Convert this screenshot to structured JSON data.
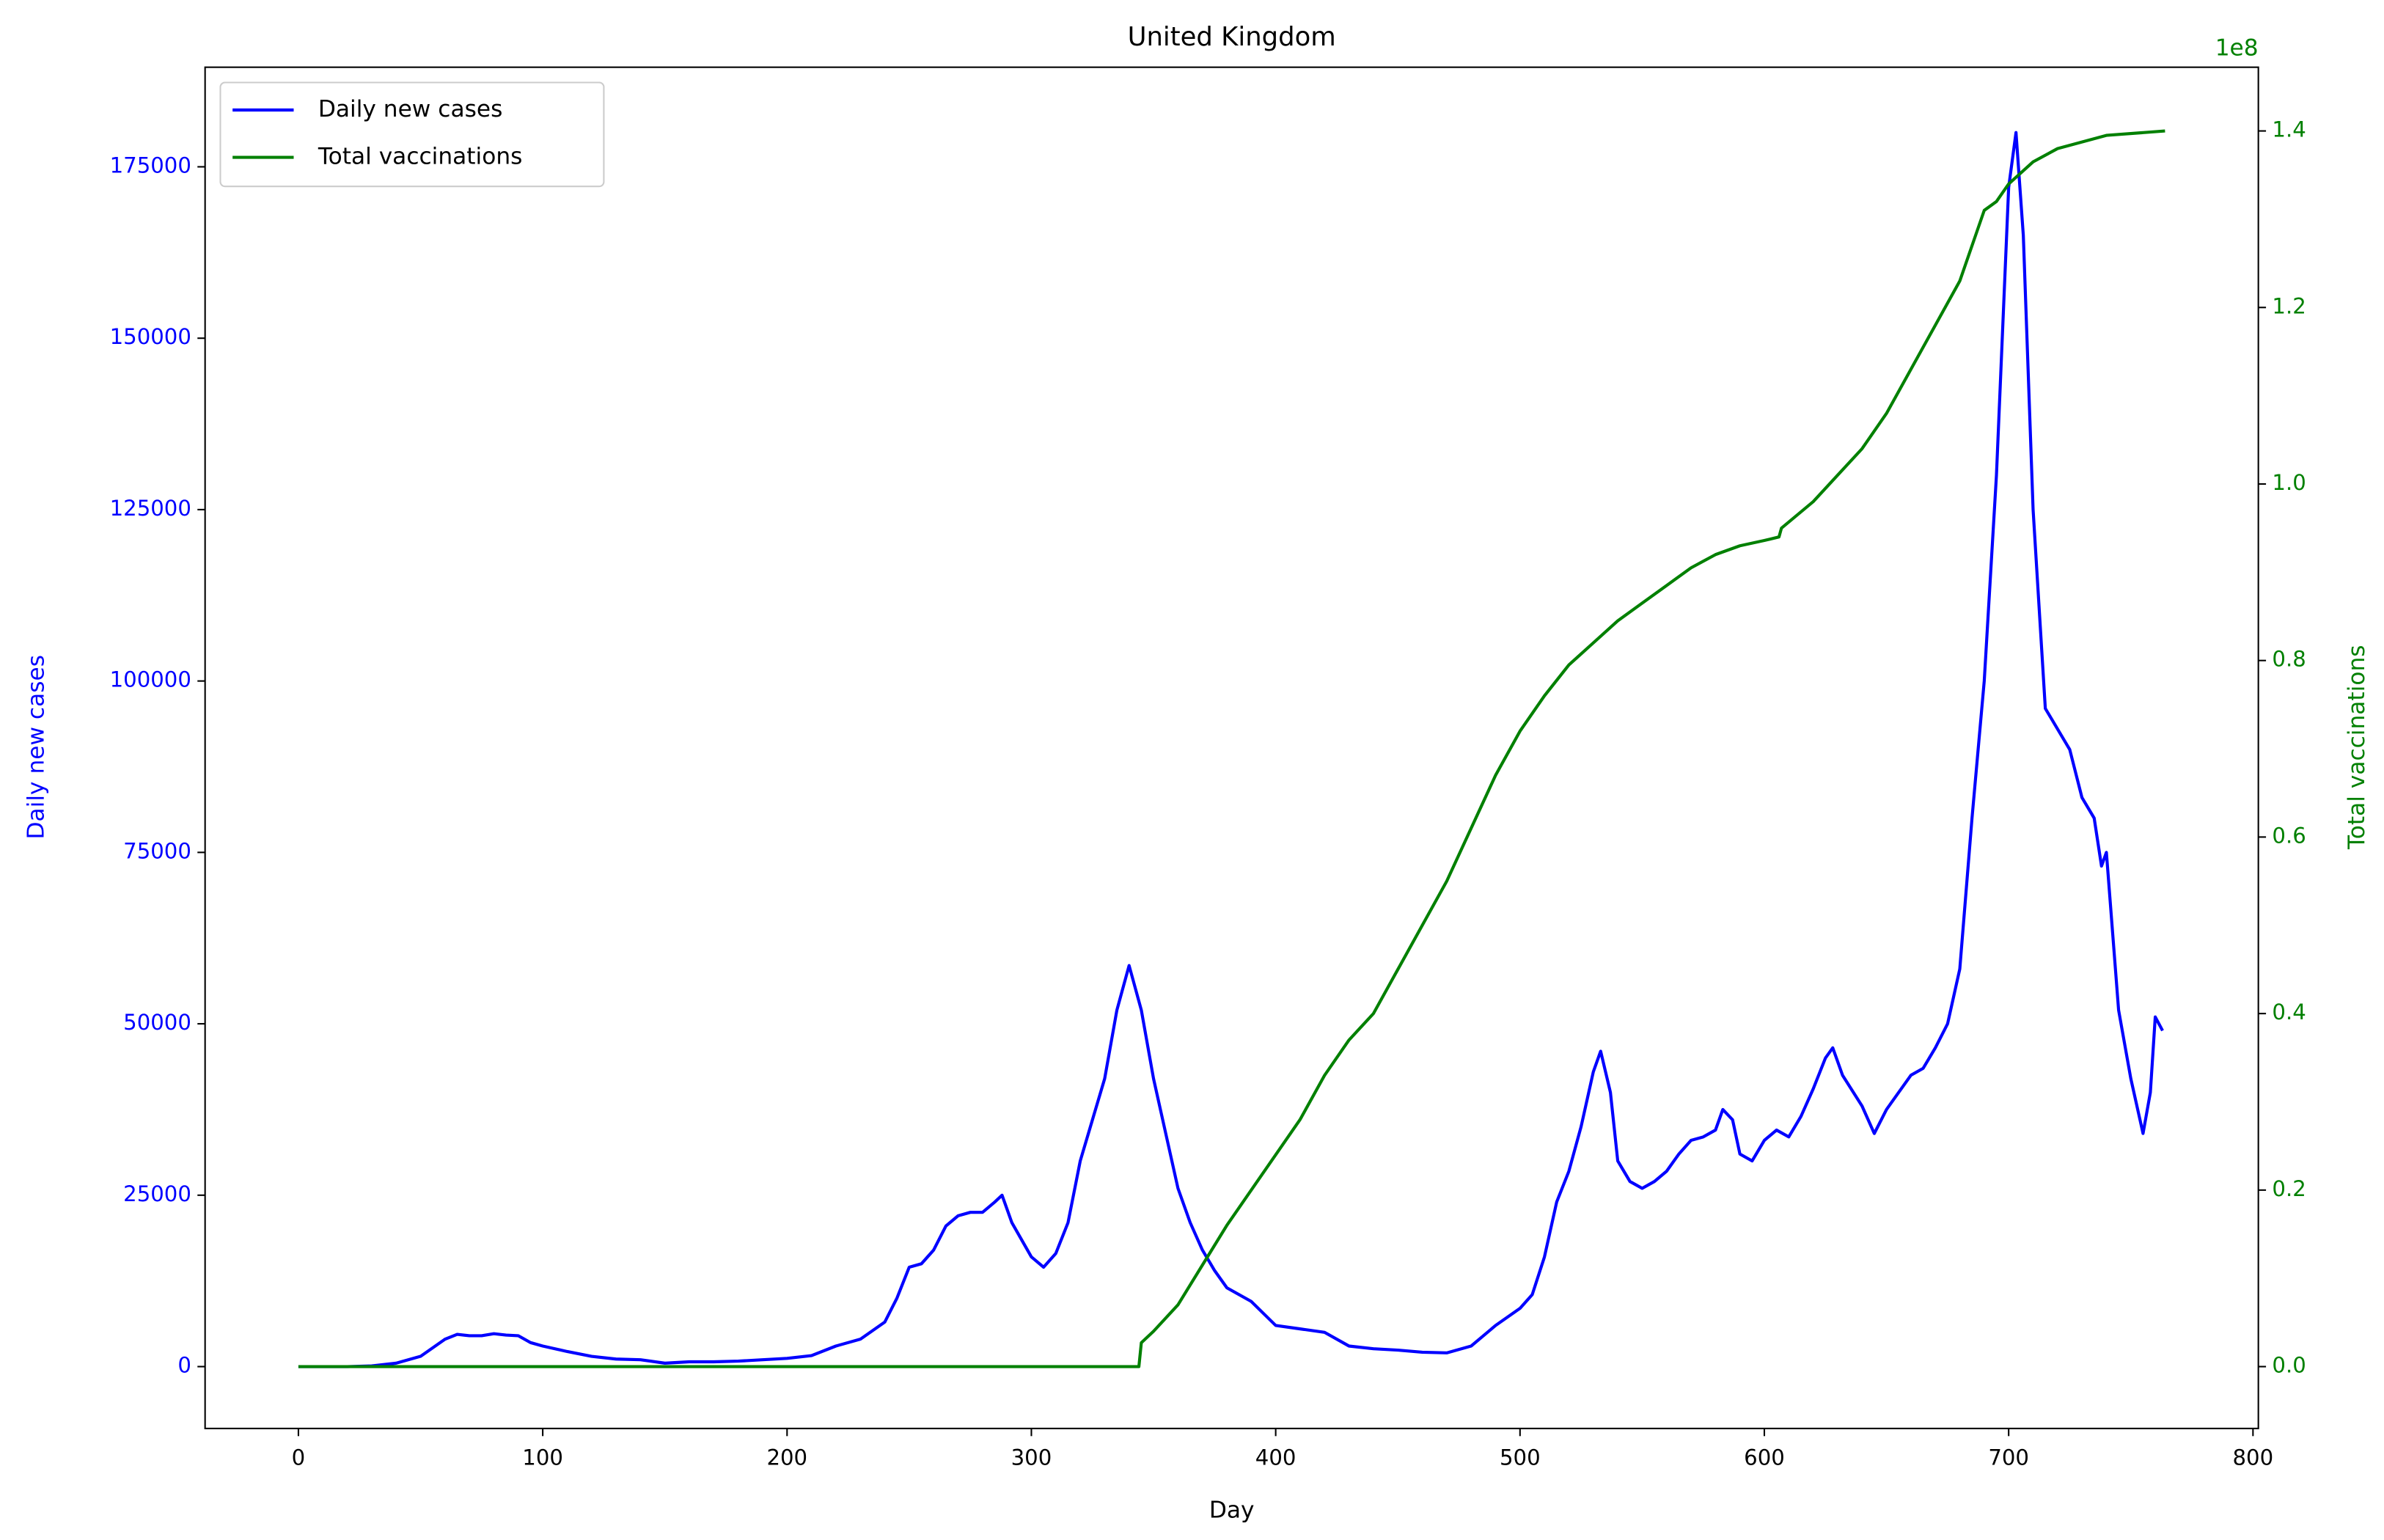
{
  "chart_data": {
    "type": "line",
    "title": "United Kingdom",
    "xlabel": "Day",
    "ylabel": "Daily new cases",
    "y2label": "Total vaccinations",
    "y2_offset_label": "1e8",
    "xlim": [
      -38.2,
      802.2
    ],
    "xticks": [
      0,
      100,
      200,
      300,
      400,
      500,
      600,
      700,
      800
    ],
    "ylim": [
      -9025,
      189525
    ],
    "yticks": [
      0,
      25000,
      50000,
      75000,
      100000,
      125000,
      150000,
      175000
    ],
    "y2lim": [
      -7010000,
      147220000
    ],
    "y2ticks": [
      {
        "value": 0,
        "label": "0.0"
      },
      {
        "value": 20000000,
        "label": "0.2"
      },
      {
        "value": 40000000,
        "label": "0.4"
      },
      {
        "value": 60000000,
        "label": "0.6"
      },
      {
        "value": 80000000,
        "label": "0.8"
      },
      {
        "value": 100000000,
        "label": "1.0"
      },
      {
        "value": 120000000,
        "label": "1.2"
      },
      {
        "value": 140000000,
        "label": "1.4"
      }
    ],
    "legend": "upper left",
    "ylabel_color": "#0000ff",
    "y2label_color": "#008000",
    "series": [
      {
        "name": "Daily new cases",
        "color": "#0000ff",
        "axis": "y",
        "x": [
          0,
          10,
          20,
          30,
          40,
          50,
          60,
          65,
          70,
          75,
          80,
          85,
          90,
          95,
          100,
          110,
          120,
          130,
          140,
          150,
          160,
          170,
          180,
          190,
          200,
          210,
          220,
          230,
          240,
          245,
          250,
          255,
          260,
          265,
          270,
          275,
          280,
          285,
          288,
          292,
          300,
          305,
          310,
          315,
          320,
          325,
          330,
          335,
          340,
          345,
          350,
          355,
          360,
          365,
          370,
          375,
          380,
          390,
          400,
          410,
          420,
          430,
          440,
          450,
          460,
          470,
          480,
          490,
          500,
          505,
          510,
          515,
          520,
          525,
          530,
          533,
          537,
          540,
          545,
          550,
          555,
          560,
          565,
          570,
          575,
          580,
          583,
          587,
          590,
          595,
          600,
          605,
          610,
          615,
          620,
          625,
          628,
          632,
          640,
          645,
          650,
          655,
          660,
          665,
          670,
          675,
          680,
          685,
          690,
          695,
          700,
          703,
          706,
          710,
          715,
          720,
          725,
          730,
          735,
          738,
          740,
          745,
          750,
          755,
          758,
          760,
          763
        ],
        "values": [
          0,
          0,
          0,
          100,
          500,
          1500,
          4000,
          4700,
          4500,
          4500,
          4800,
          4600,
          4500,
          3500,
          3000,
          2200,
          1500,
          1100,
          1000,
          500,
          700,
          700,
          800,
          1000,
          1200,
          1600,
          3000,
          4000,
          6500,
          10000,
          14500,
          15000,
          17000,
          20500,
          22000,
          22500,
          22500,
          24000,
          25000,
          21000,
          16000,
          14500,
          16500,
          21000,
          30000,
          36000,
          42000,
          52000,
          58500,
          52000,
          42000,
          34000,
          26000,
          21000,
          17000,
          14000,
          11500,
          9500,
          6000,
          5500,
          5000,
          3000,
          2600,
          2400,
          2100,
          2000,
          3000,
          6000,
          8500,
          10500,
          16000,
          24000,
          28500,
          35000,
          43000,
          46000,
          40000,
          30000,
          27000,
          26000,
          27000,
          28500,
          31000,
          33000,
          33500,
          34500,
          37500,
          36000,
          31000,
          30000,
          33000,
          34500,
          33500,
          36500,
          40500,
          45000,
          46500,
          42500,
          38000,
          34000,
          37500,
          40000,
          42500,
          43500,
          46500,
          50000,
          58000,
          80000,
          100000,
          130000,
          172000,
          180000,
          165000,
          125000,
          96000,
          93000,
          90000,
          83000,
          80000,
          73000,
          75000,
          52000,
          42000,
          34000,
          40000,
          51000,
          49000
        ]
      },
      {
        "name": "Total vaccinations",
        "color": "#008000",
        "axis": "y2",
        "x": [
          0,
          100,
          200,
          300,
          344,
          345,
          350,
          360,
          370,
          380,
          390,
          400,
          410,
          420,
          430,
          440,
          450,
          460,
          470,
          480,
          490,
          500,
          510,
          520,
          530,
          540,
          550,
          560,
          570,
          580,
          590,
          600,
          606,
          607,
          620,
          630,
          640,
          650,
          660,
          670,
          680,
          690,
          695,
          700,
          710,
          720,
          740,
          764
        ],
        "values": [
          0,
          0,
          0,
          0,
          0,
          2700000,
          4000000,
          7000000,
          11500000,
          16000000,
          20000000,
          24000000,
          28000000,
          33000000,
          37000000,
          40000000,
          45000000,
          50000000,
          55000000,
          61000000,
          67000000,
          72000000,
          76000000,
          79500000,
          82000000,
          84500000,
          86500000,
          88500000,
          90500000,
          92000000,
          93000000,
          93600000,
          94000000,
          95000000,
          98000000,
          101000000,
          104000000,
          108000000,
          113000000,
          118000000,
          123000000,
          131000000,
          132000000,
          134000000,
          136500000,
          138000000,
          139500000,
          140000000
        ]
      }
    ]
  }
}
